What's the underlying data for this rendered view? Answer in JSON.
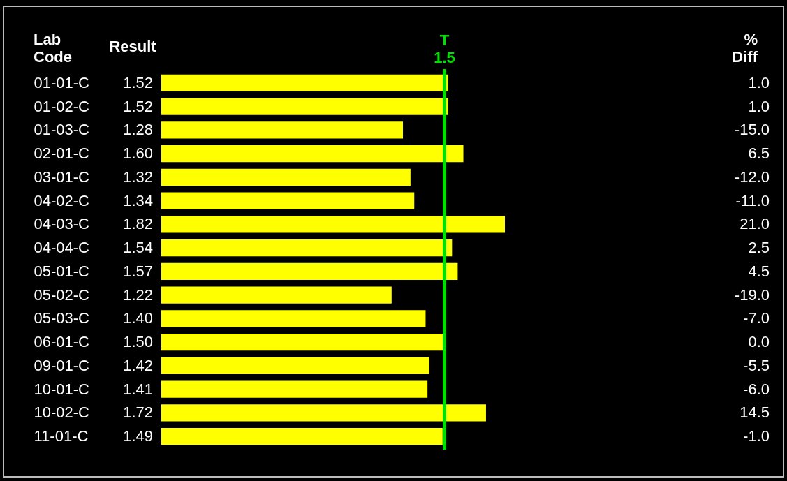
{
  "chart_data": {
    "type": "bar",
    "orientation": "horizontal",
    "categories": [
      "01-01-C",
      "01-02-C",
      "01-03-C",
      "02-01-C",
      "03-01-C",
      "04-02-C",
      "04-03-C",
      "04-04-C",
      "05-01-C",
      "05-02-C",
      "05-03-C",
      "06-01-C",
      "09-01-C",
      "10-01-C",
      "10-02-C",
      "11-01-C"
    ],
    "values": [
      1.52,
      1.52,
      1.28,
      1.6,
      1.32,
      1.34,
      1.82,
      1.54,
      1.57,
      1.22,
      1.4,
      1.5,
      1.42,
      1.41,
      1.72,
      1.49
    ],
    "value_labels": [
      "1.52",
      "1.52",
      "1.28",
      "1.60",
      "1.32",
      "1.34",
      "1.82",
      "1.54",
      "1.57",
      "1.22",
      "1.40",
      "1.50",
      "1.42",
      "1.41",
      "1.72",
      "1.49"
    ],
    "color": "#ffff00",
    "tick_labels": "y",
    "ref_lines": [
      {
        "axis": "x",
        "value": 1.5,
        "label": "T 1.5",
        "color": "#00e000"
      }
    ],
    "annotations": [
      "Lab Code",
      "Result",
      "% Diff",
      "1.0",
      "1.0",
      "-15.0",
      "6.5",
      "-12.0",
      "-11.0",
      "21.0",
      "2.5",
      "4.5",
      "-19.0",
      "-7.0",
      "0.0",
      "-5.5",
      "-6.0",
      "14.5",
      "-1.0"
    ]
  }
}
